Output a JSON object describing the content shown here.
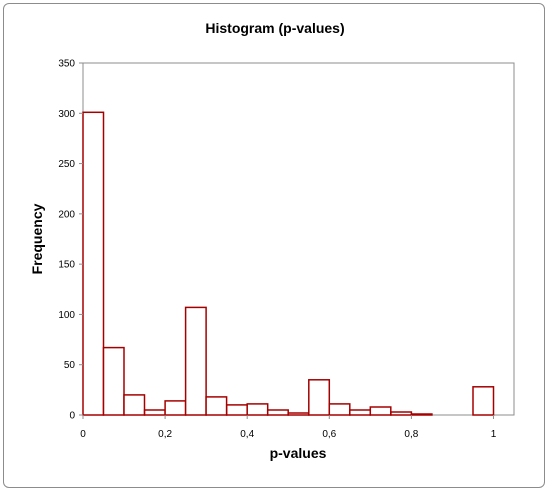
{
  "chart_data": {
    "type": "bar",
    "title": "Histogram (p-values)",
    "xlabel": "p-values",
    "ylabel": "Frequency",
    "xlim": [
      0,
      1.05
    ],
    "ylim": [
      0,
      350
    ],
    "xticks": [
      0,
      0.2,
      0.4,
      0.6,
      0.8,
      1
    ],
    "xtick_labels": [
      "0",
      "0,2",
      "0,4",
      "0,6",
      "0,8",
      "1"
    ],
    "yticks": [
      0,
      50,
      100,
      150,
      200,
      250,
      300,
      350
    ],
    "bin_width": 0.05,
    "bins": [
      {
        "x0": 0.0,
        "value": 301
      },
      {
        "x0": 0.05,
        "value": 67
      },
      {
        "x0": 0.1,
        "value": 20
      },
      {
        "x0": 0.15,
        "value": 5
      },
      {
        "x0": 0.2,
        "value": 14
      },
      {
        "x0": 0.25,
        "value": 107
      },
      {
        "x0": 0.3,
        "value": 18
      },
      {
        "x0": 0.35,
        "value": 10
      },
      {
        "x0": 0.4,
        "value": 11
      },
      {
        "x0": 0.45,
        "value": 5
      },
      {
        "x0": 0.5,
        "value": 2
      },
      {
        "x0": 0.55,
        "value": 35
      },
      {
        "x0": 0.6,
        "value": 11
      },
      {
        "x0": 0.65,
        "value": 5
      },
      {
        "x0": 0.7,
        "value": 8
      },
      {
        "x0": 0.75,
        "value": 3
      },
      {
        "x0": 0.8,
        "value": 1
      },
      {
        "x0": 0.85,
        "value": 0
      },
      {
        "x0": 0.9,
        "value": 0
      },
      {
        "x0": 0.95,
        "value": 28
      }
    ],
    "grid": false,
    "legend": "none",
    "bar_color": "#a50000",
    "bar_fill": "#ffffff"
  }
}
